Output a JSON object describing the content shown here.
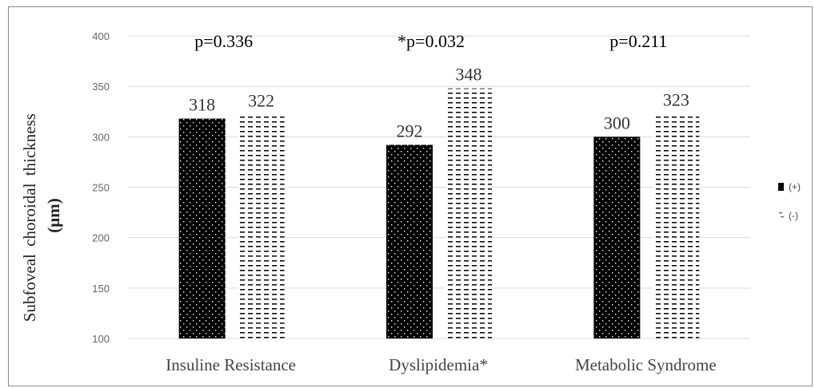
{
  "chart_data": {
    "type": "bar",
    "categories": [
      "Insuline Resistance",
      "Dyslipidemia*",
      "Metabolic Syndrome"
    ],
    "series": [
      {
        "name": "(+)",
        "values": [
          318,
          292,
          300
        ]
      },
      {
        "name": "(-)",
        "values": [
          322,
          348,
          323
        ]
      }
    ],
    "data_labels": [
      [
        "318",
        "292",
        "300"
      ],
      [
        "322",
        "348",
        "323"
      ]
    ],
    "p_values": [
      "p=0.336",
      "*p=0.032",
      "p=0.211"
    ],
    "ylabel_line1": "Subfoveal choroidal thickness",
    "ylabel_line2": "(μm)",
    "ylim": [
      100,
      400
    ],
    "yticks": [
      100,
      150,
      200,
      250,
      300,
      350,
      400
    ],
    "grid": true,
    "legend_position": "right",
    "colors": {
      "positive": "#000000",
      "negative": "#ffffff",
      "grid": "#d9d9d9"
    }
  }
}
